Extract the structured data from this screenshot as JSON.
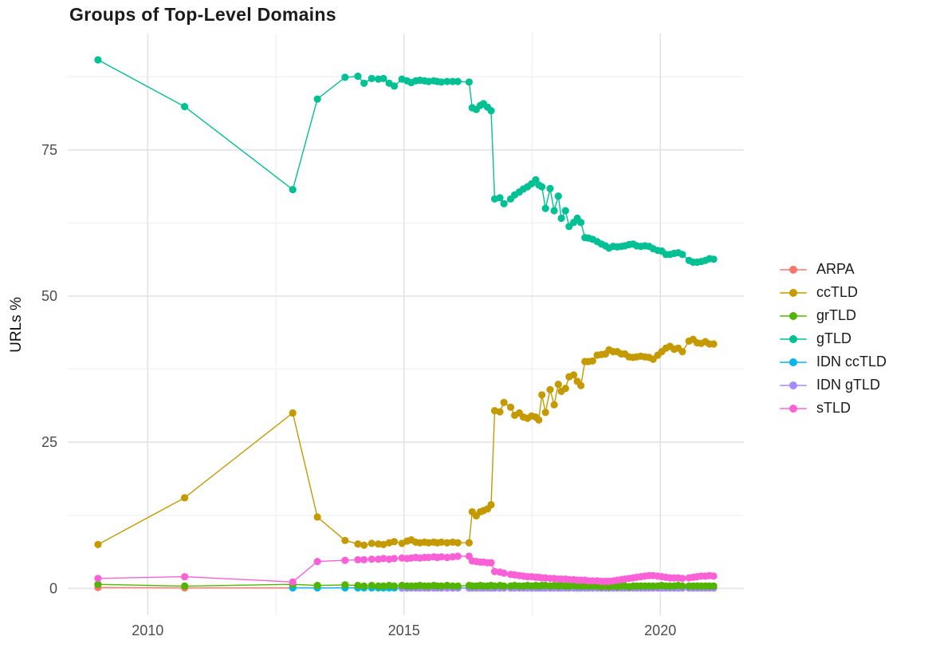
{
  "chart_data": {
    "type": "line",
    "title": "Groups of Top-Level Domains",
    "ylabel": "URLs %",
    "xlabel": "",
    "grid": true,
    "legend_position": "right",
    "x_domain": [
      2008.44,
      2021.63
    ],
    "y_domain": [
      -4.6,
      94.9
    ],
    "x_ticks": [
      2010,
      2015,
      2020
    ],
    "x_tick_labels": [
      "2010",
      "2015",
      "2020"
    ],
    "x_minor": [
      2012.5,
      2017.5
    ],
    "y_ticks": [
      0,
      25,
      50,
      75
    ],
    "y_tick_labels": [
      "0",
      "25",
      "50",
      "75"
    ],
    "y_minor": [
      12.5,
      37.5,
      62.5,
      87.5
    ],
    "x": [
      2009.03,
      2010.72,
      2012.83,
      2013.31,
      2013.85,
      2014.1,
      2014.22,
      2014.37,
      2014.5,
      2014.6,
      2014.71,
      2014.81,
      2014.96,
      2015.06,
      2015.14,
      2015.23,
      2015.31,
      2015.4,
      2015.48,
      2015.58,
      2015.65,
      2015.73,
      2015.84,
      2015.95,
      2016.05,
      2016.27,
      2016.33,
      2016.41,
      2016.49,
      2016.55,
      2016.63,
      2016.7,
      2016.77,
      2016.87,
      2016.95,
      2017.08,
      2017.16,
      2017.25,
      2017.33,
      2017.41,
      2017.49,
      2017.57,
      2017.63,
      2017.69,
      2017.76,
      2017.85,
      2017.93,
      2018.01,
      2018.07,
      2018.15,
      2018.22,
      2018.31,
      2018.38,
      2018.45,
      2018.53,
      2018.6,
      2018.68,
      2018.77,
      2018.85,
      2018.93,
      2019.0,
      2019.08,
      2019.16,
      2019.24,
      2019.31,
      2019.39,
      2019.47,
      2019.54,
      2019.62,
      2019.7,
      2019.78,
      2019.86,
      2019.95,
      2020.03,
      2020.11,
      2020.19,
      2020.27,
      2020.35,
      2020.43,
      2020.56,
      2020.64,
      2020.72,
      2020.8,
      2020.88,
      2020.96,
      2021.04
    ],
    "series": [
      {
        "name": "ARPA",
        "color": "#F8766D",
        "z": 1,
        "values": [
          0.15,
          0.1,
          0.1,
          null,
          null,
          null,
          null,
          null,
          null,
          null,
          null,
          null,
          null,
          null,
          null,
          null,
          null,
          null,
          null,
          null,
          null,
          null,
          null,
          null,
          null,
          null,
          null,
          null,
          null,
          null,
          null,
          null,
          null,
          null,
          null,
          null,
          null,
          null,
          null,
          null,
          null,
          null,
          null,
          null,
          null,
          null,
          null,
          null,
          null,
          null,
          null,
          null,
          null,
          null,
          null,
          null,
          null,
          null,
          null,
          null,
          null,
          null,
          null,
          null,
          null,
          null,
          null,
          null,
          null,
          null,
          null,
          null,
          null,
          null,
          null,
          null,
          null,
          null,
          null,
          null,
          null,
          null,
          null,
          null,
          null,
          null
        ]
      },
      {
        "name": "ccTLD",
        "color": "#C49A00",
        "z": 6,
        "values": [
          7.5,
          15.5,
          30.0,
          12.2,
          8.2,
          7.6,
          7.4,
          7.7,
          7.6,
          7.5,
          7.8,
          8.0,
          7.7,
          8.1,
          8.3,
          7.9,
          7.8,
          7.9,
          7.8,
          7.9,
          7.8,
          7.9,
          7.8,
          7.9,
          7.8,
          7.8,
          13.1,
          12.4,
          13.1,
          13.3,
          13.6,
          14.3,
          30.4,
          30.2,
          31.8,
          31.0,
          29.6,
          30.0,
          29.3,
          29.1,
          29.5,
          29.3,
          28.8,
          33.1,
          30.1,
          34.0,
          31.4,
          34.9,
          33.7,
          34.2,
          36.2,
          36.5,
          35.4,
          34.7,
          38.8,
          38.8,
          38.9,
          39.9,
          40.0,
          40.1,
          40.8,
          40.5,
          40.5,
          40.1,
          40.1,
          39.6,
          39.5,
          39.6,
          39.7,
          39.6,
          39.5,
          39.2,
          39.9,
          40.5,
          41.1,
          41.4,
          40.9,
          41.1,
          40.5,
          42.3,
          42.6,
          42.0,
          41.9,
          42.2,
          41.8,
          41.8
        ]
      },
      {
        "name": "grTLD",
        "color": "#53B400",
        "z": 4,
        "values": [
          0.7,
          0.4,
          0.7,
          0.5,
          0.6,
          0.5,
          0.4,
          0.5,
          0.4,
          0.4,
          0.5,
          0.4,
          0.5,
          0.4,
          0.4,
          0.4,
          0.5,
          0.4,
          0.4,
          0.5,
          0.4,
          0.4,
          0.5,
          0.4,
          0.4,
          0.5,
          0.4,
          0.4,
          0.5,
          0.4,
          0.4,
          0.5,
          0.4,
          0.5,
          0.4,
          0.4,
          0.5,
          0.4,
          0.4,
          0.5,
          0.4,
          0.5,
          0.4,
          0.5,
          0.5,
          0.4,
          0.5,
          0.4,
          0.5,
          0.4,
          0.4,
          0.5,
          0.4,
          0.4,
          0.4,
          0.4,
          0.4,
          0.4,
          0.3,
          0.4,
          0.3,
          0.4,
          0.3,
          0.4,
          0.4,
          0.3,
          0.4,
          0.4,
          0.4,
          0.4,
          0.4,
          0.4,
          0.4,
          0.5,
          0.4,
          0.4,
          0.4,
          0.5,
          0.4,
          0.4,
          0.4,
          0.4,
          0.4,
          0.4,
          0.4,
          0.4
        ]
      },
      {
        "name": "gTLD",
        "color": "#00C094",
        "z": 7,
        "values": [
          90.4,
          82.4,
          68.2,
          83.7,
          87.4,
          87.6,
          86.4,
          87.2,
          87.1,
          87.2,
          86.4,
          85.9,
          87.1,
          86.8,
          86.5,
          86.8,
          86.9,
          86.8,
          86.7,
          86.8,
          86.7,
          86.6,
          86.7,
          86.7,
          86.7,
          86.6,
          82.2,
          81.9,
          82.6,
          82.9,
          82.3,
          81.7,
          66.6,
          66.8,
          65.8,
          66.6,
          67.3,
          67.8,
          68.3,
          68.7,
          69.2,
          69.9,
          69.0,
          68.7,
          65.0,
          68.4,
          64.6,
          67.1,
          63.3,
          64.6,
          61.9,
          62.6,
          63.3,
          62.6,
          60.0,
          59.9,
          59.7,
          59.3,
          58.9,
          58.6,
          58.2,
          58.5,
          58.4,
          58.5,
          58.6,
          58.8,
          58.9,
          58.6,
          58.5,
          58.6,
          58.5,
          58.1,
          57.8,
          57.7,
          57.1,
          57.1,
          57.3,
          57.4,
          57.1,
          56.1,
          55.8,
          55.8,
          55.9,
          56.1,
          56.4,
          56.3
        ]
      },
      {
        "name": "IDN ccTLD",
        "color": "#00B6EB",
        "z": 2,
        "values": [
          null,
          null,
          0.1,
          0.1,
          0.1,
          0.1,
          0.1,
          0.1,
          0.1,
          0.1,
          0.1,
          0.1,
          0.1,
          0.1,
          0.1,
          0.1,
          0.1,
          0.1,
          0.1,
          0.1,
          0.1,
          0.1,
          0.1,
          0.1,
          0.1,
          0.1,
          0.1,
          0.1,
          0.1,
          0.1,
          0.1,
          0.1,
          0.1,
          0.1,
          0.1,
          0.1,
          0.1,
          0.1,
          0.1,
          0.1,
          0.1,
          0.1,
          0.1,
          0.1,
          0.1,
          0.1,
          0.1,
          0.1,
          0.1,
          0.1,
          0.1,
          0.1,
          0.1,
          0.1,
          0.1,
          0.1,
          0.1,
          0.1,
          0.1,
          0.1,
          0.1,
          0.1,
          0.1,
          0.1,
          0.1,
          0.1,
          0.1,
          0.1,
          0.1,
          0.1,
          0.1,
          0.1,
          0.1,
          0.1,
          0.1,
          0.1,
          0.1,
          0.1,
          0.1,
          0.1,
          0.1,
          0.1,
          0.1,
          0.1,
          0.1,
          0.1
        ]
      },
      {
        "name": "IDN gTLD",
        "color": "#A58AFF",
        "z": 3,
        "values": [
          null,
          null,
          null,
          null,
          null,
          null,
          null,
          null,
          null,
          null,
          null,
          null,
          0.05,
          0.05,
          0.05,
          0.05,
          0.05,
          0.05,
          0.05,
          0.05,
          0.05,
          0.05,
          0.05,
          0.05,
          0.05,
          0.05,
          0.05,
          0.05,
          0.05,
          0.05,
          0.05,
          0.05,
          0.05,
          0.05,
          0.05,
          0.05,
          0.05,
          0.05,
          0.05,
          0.05,
          0.05,
          0.05,
          0.05,
          0.05,
          0.05,
          0.05,
          0.05,
          0.05,
          0.05,
          0.05,
          0.05,
          0.05,
          0.05,
          0.05,
          0.05,
          0.05,
          0.05,
          0.05,
          0.05,
          0.05,
          0.05,
          0.05,
          0.05,
          0.05,
          0.05,
          0.05,
          0.05,
          0.05,
          0.05,
          0.05,
          0.05,
          0.05,
          0.05,
          0.05,
          0.05,
          0.05,
          0.05,
          0.05,
          0.05,
          0.05,
          0.05,
          0.05,
          0.05,
          0.05,
          0.05,
          0.05
        ]
      },
      {
        "name": "sTLD",
        "color": "#FB61D7",
        "z": 5,
        "values": [
          1.7,
          2.0,
          1.1,
          4.6,
          4.8,
          4.9,
          4.9,
          5.0,
          5.0,
          5.1,
          5.0,
          5.1,
          5.2,
          5.1,
          5.2,
          5.3,
          5.2,
          5.3,
          5.3,
          5.4,
          5.3,
          5.4,
          5.3,
          5.4,
          5.5,
          5.5,
          4.7,
          4.6,
          4.5,
          4.5,
          4.4,
          4.4,
          2.9,
          2.8,
          2.6,
          2.4,
          2.3,
          2.2,
          2.1,
          2.0,
          2.0,
          1.9,
          1.9,
          1.8,
          1.8,
          1.7,
          1.7,
          1.6,
          1.6,
          1.6,
          1.5,
          1.5,
          1.4,
          1.4,
          1.4,
          1.3,
          1.3,
          1.3,
          1.2,
          1.2,
          1.2,
          1.3,
          1.4,
          1.5,
          1.6,
          1.7,
          1.8,
          1.9,
          2.0,
          2.1,
          2.2,
          2.2,
          2.1,
          2.0,
          1.9,
          1.8,
          1.8,
          1.8,
          1.7,
          1.8,
          1.9,
          2.0,
          2.1,
          2.1,
          2.2,
          2.1
        ]
      }
    ]
  }
}
